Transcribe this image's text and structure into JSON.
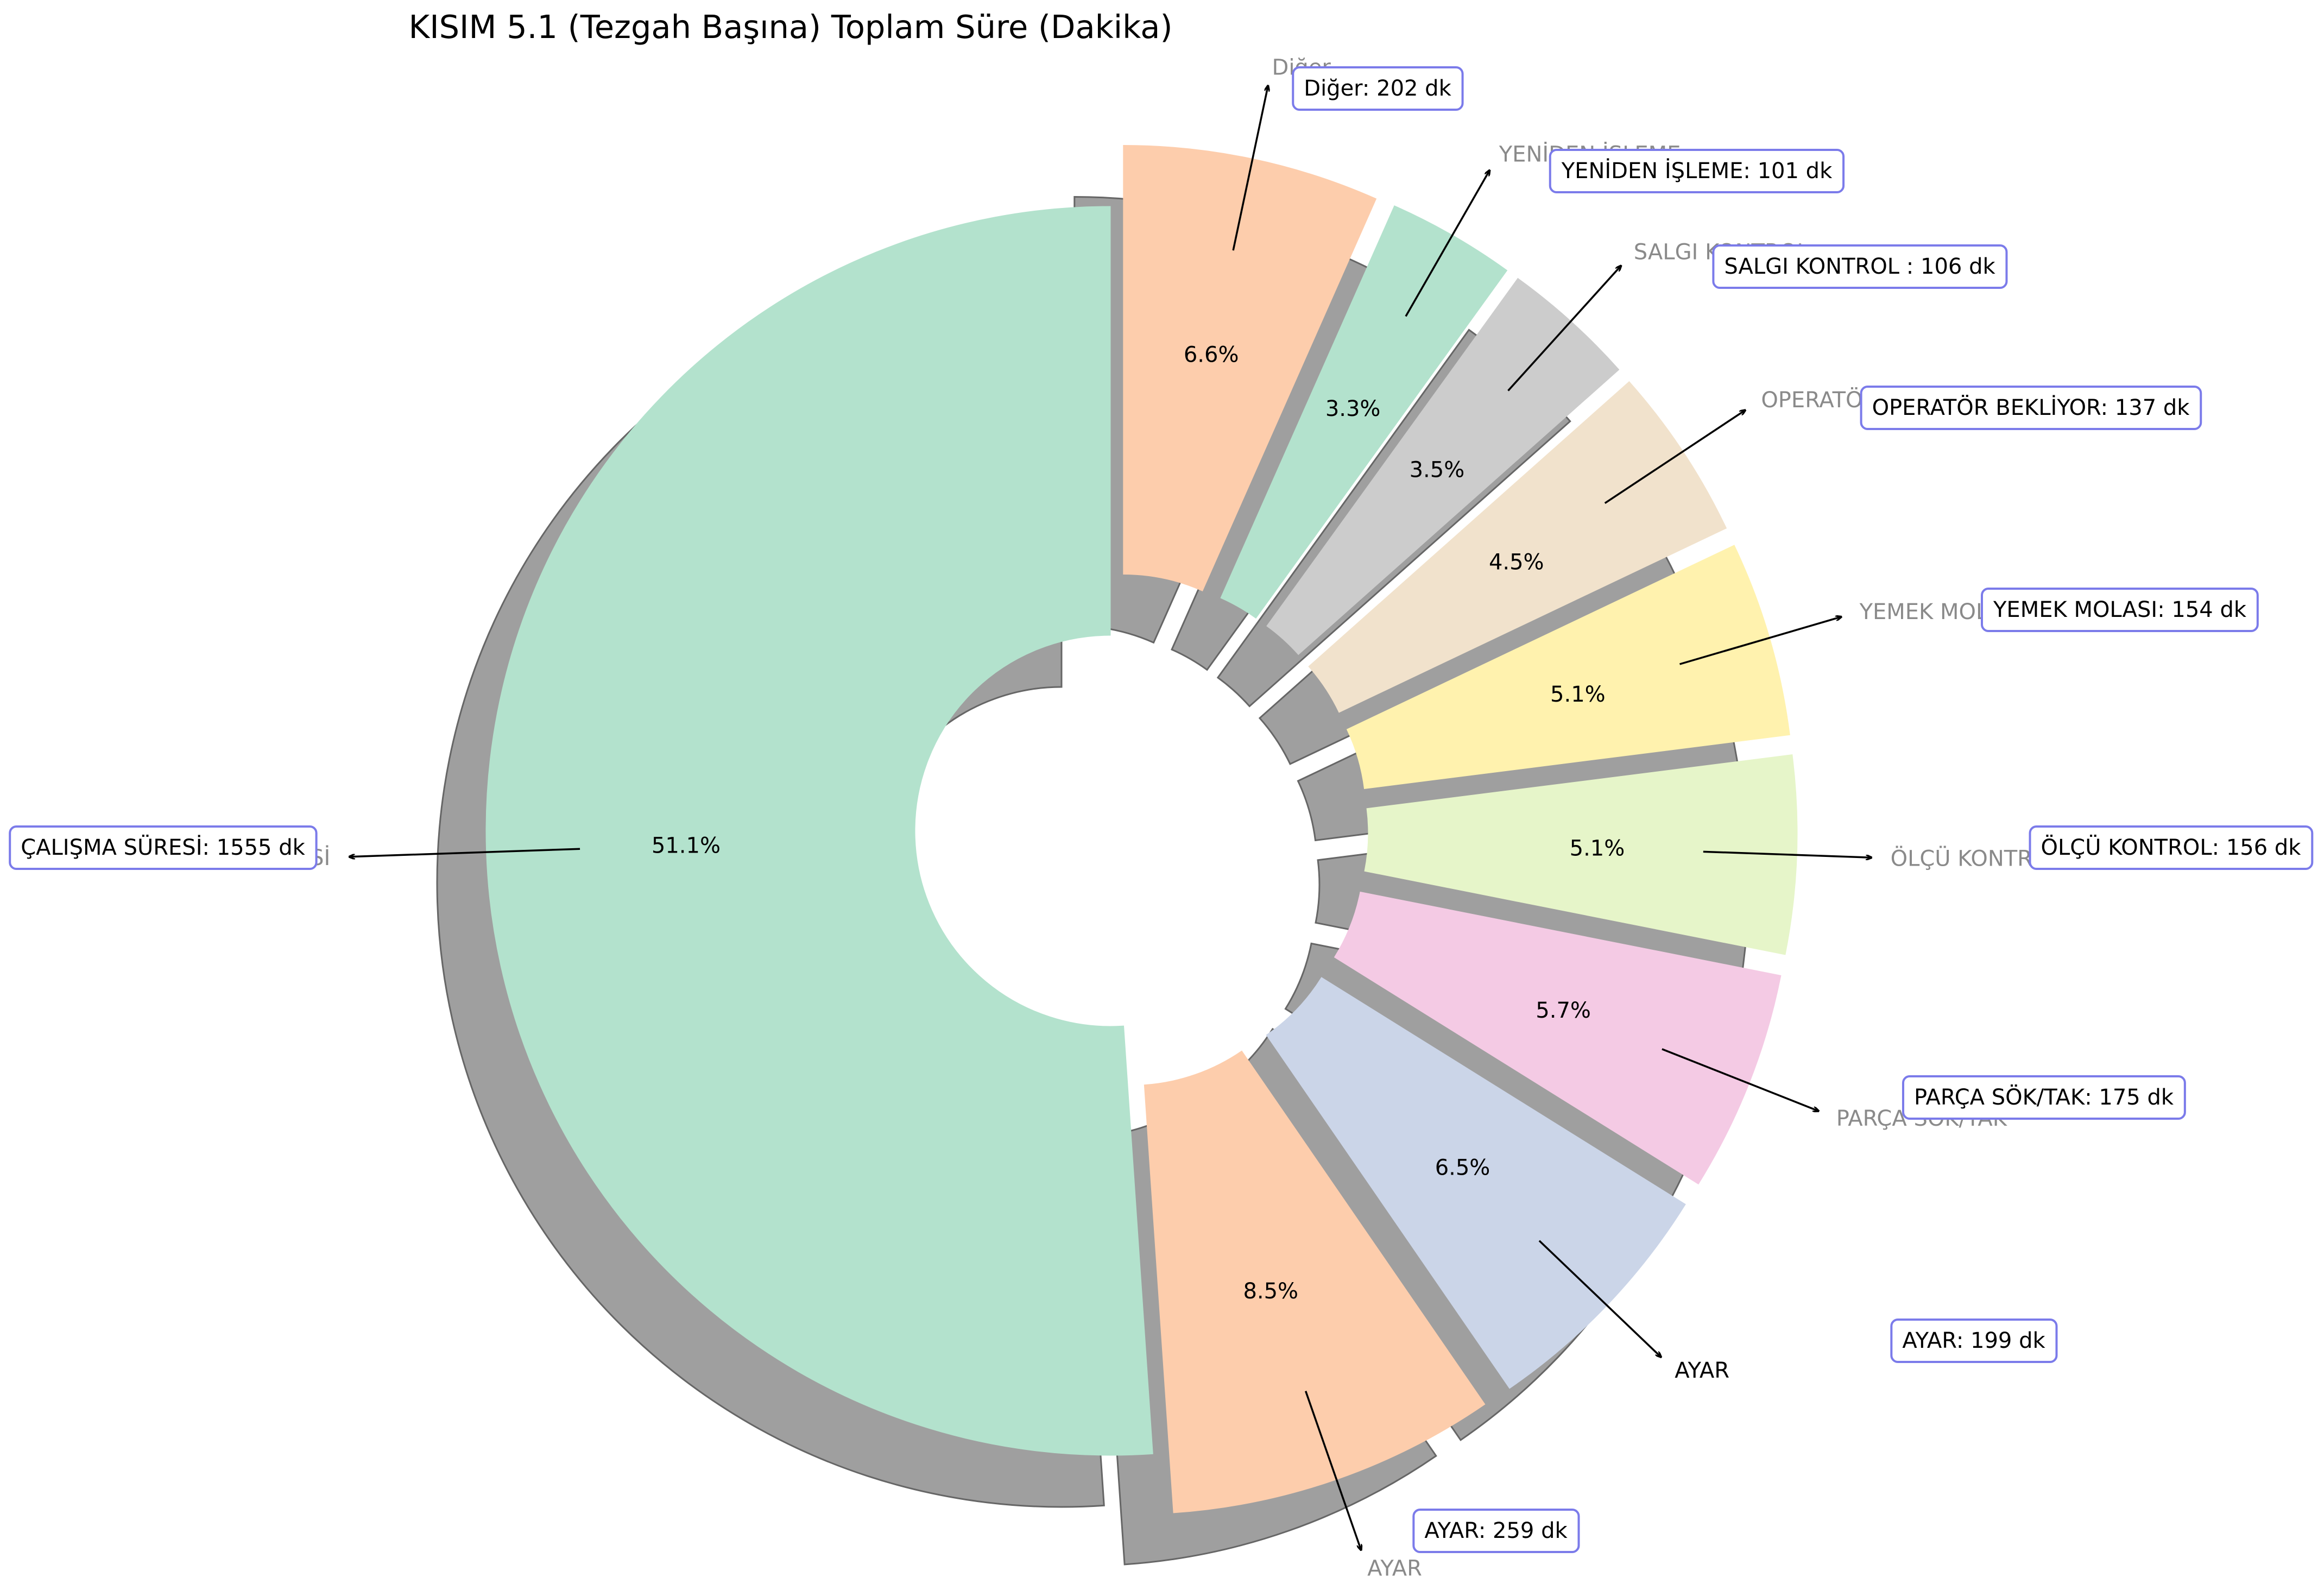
{
  "chart_data": {
    "type": "pie",
    "variant": "donut",
    "title": "KISIM 5.1 (Tezgah Başına) Toplam Süre (Dakika)",
    "unit": "dk",
    "shadow": true,
    "slices": [
      {
        "label": "ÇALIŞMA SÜRESİ",
        "value": 1555,
        "pct": "51.1%",
        "annotation": "ÇALIŞMA SÜRESİ: 1555 dk",
        "color": "#b3e2cd"
      },
      {
        "label": "AYAR",
        "value": 259,
        "pct": "8.5%",
        "annotation": "AYAR: 259 dk",
        "color": "#fdcdac"
      },
      {
        "label": "AYAR",
        "value": 199,
        "pct": "6.5%",
        "annotation": "AYAR: 199 dk",
        "color": "#cbd5e8"
      },
      {
        "label": "PARÇA SÖK/TAK",
        "value": 175,
        "pct": "5.7%",
        "annotation": "PARÇA SÖK/TAK: 175 dk",
        "color": "#f4cae4"
      },
      {
        "label": "ÖLÇÜ KONTROL",
        "value": 156,
        "pct": "5.1%",
        "annotation": "ÖLÇÜ KONTROL: 156 dk",
        "color": "#e6f5c9"
      },
      {
        "label": "YEMEK MOLASI",
        "value": 154,
        "pct": "5.1%",
        "annotation": "YEMEK MOLASI: 154 dk",
        "color": "#fff2ae"
      },
      {
        "label": "OPERATÖR BEKLİYOR",
        "value": 137,
        "pct": "4.5%",
        "annotation": "OPERATÖR BEKLİYOR: 137 dk",
        "color": "#f1e2cc"
      },
      {
        "label": "SALGI KONTROL",
        "value": 106,
        "pct": "3.5%",
        "annotation": "SALGI KONTROL : 106 dk",
        "color": "#cccccc"
      },
      {
        "label": "YENİDEN İŞLEME",
        "value": 101,
        "pct": "3.3%",
        "annotation": "YENİDEN İŞLEME: 101 dk",
        "color": "#b3e2cd"
      },
      {
        "label": "Diğer",
        "value": 202,
        "pct": "6.6%",
        "annotation": "Diğer: 202 dk",
        "color": "#fdcdac"
      }
    ]
  }
}
